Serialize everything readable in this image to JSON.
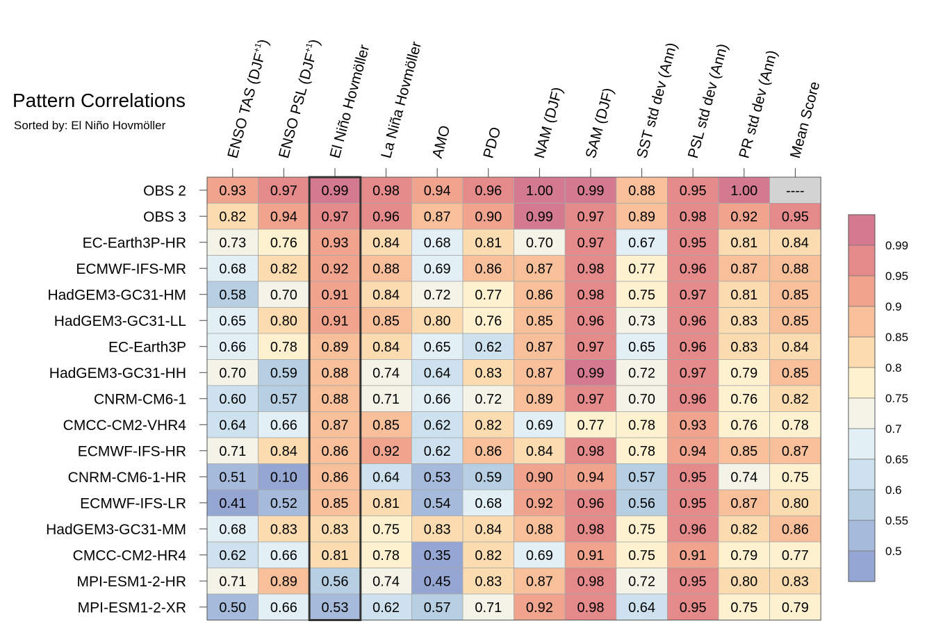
{
  "chart_data": {
    "type": "heatmap",
    "title": "Pattern Correlations",
    "subtitle": "Sorted by: El Niño Hovmöller",
    "columns": [
      {
        "main": "ENSO TAS (DJF",
        "sup": "+1",
        "tail": ")"
      },
      {
        "main": "ENSO PSL (DJF",
        "sup": "+1",
        "tail": ")"
      },
      {
        "main": "El Niño Hovmöller",
        "sup": "",
        "tail": ""
      },
      {
        "main": "La Niña Hovmöller",
        "sup": "",
        "tail": ""
      },
      {
        "main": "AMO",
        "sup": "",
        "tail": ""
      },
      {
        "main": "PDO",
        "sup": "",
        "tail": ""
      },
      {
        "main": "NAM (DJF)",
        "sup": "",
        "tail": ""
      },
      {
        "main": "SAM (DJF)",
        "sup": "",
        "tail": ""
      },
      {
        "main": "SST std dev (Ann)",
        "sup": "",
        "tail": ""
      },
      {
        "main": "PSL std dev (Ann)",
        "sup": "",
        "tail": ""
      },
      {
        "main": "PR std dev (Ann)",
        "sup": "",
        "tail": ""
      },
      {
        "main": "Mean Score",
        "sup": "",
        "tail": ""
      }
    ],
    "rows": [
      "OBS 2",
      "OBS 3",
      "EC-Earth3P-HR",
      "ECMWF-IFS-MR",
      "HadGEM3-GC31-HM",
      "HadGEM3-GC31-LL",
      "EC-Earth3P",
      "HadGEM3-GC31-HH",
      "CNRM-CM6-1",
      "CMCC-CM2-VHR4",
      "ECMWF-IFS-HR",
      "CNRM-CM6-1-HR",
      "ECMWF-IFS-LR",
      "HadGEM3-GC31-MM",
      "CMCC-CM2-HR4",
      "MPI-ESM1-2-HR",
      "MPI-ESM1-2-XR"
    ],
    "values": [
      [
        0.93,
        0.97,
        0.99,
        0.98,
        0.94,
        0.96,
        1.0,
        0.99,
        0.88,
        0.95,
        1.0,
        null
      ],
      [
        0.82,
        0.94,
        0.97,
        0.96,
        0.87,
        0.9,
        0.99,
        0.97,
        0.89,
        0.98,
        0.92,
        0.95
      ],
      [
        0.73,
        0.76,
        0.93,
        0.84,
        0.68,
        0.81,
        0.7,
        0.97,
        0.67,
        0.95,
        0.81,
        0.84
      ],
      [
        0.68,
        0.82,
        0.92,
        0.88,
        0.69,
        0.86,
        0.87,
        0.98,
        0.77,
        0.96,
        0.87,
        0.88
      ],
      [
        0.58,
        0.7,
        0.91,
        0.84,
        0.72,
        0.77,
        0.86,
        0.98,
        0.75,
        0.97,
        0.81,
        0.85
      ],
      [
        0.65,
        0.8,
        0.91,
        0.85,
        0.8,
        0.76,
        0.85,
        0.96,
        0.73,
        0.96,
        0.83,
        0.85
      ],
      [
        0.66,
        0.78,
        0.89,
        0.84,
        0.65,
        0.62,
        0.87,
        0.97,
        0.65,
        0.96,
        0.83,
        0.84
      ],
      [
        0.7,
        0.59,
        0.88,
        0.74,
        0.64,
        0.83,
        0.87,
        0.99,
        0.72,
        0.97,
        0.79,
        0.85
      ],
      [
        0.6,
        0.57,
        0.88,
        0.71,
        0.66,
        0.72,
        0.89,
        0.97,
        0.7,
        0.96,
        0.76,
        0.82
      ],
      [
        0.64,
        0.66,
        0.87,
        0.85,
        0.62,
        0.82,
        0.69,
        0.77,
        0.78,
        0.93,
        0.76,
        0.78
      ],
      [
        0.71,
        0.84,
        0.86,
        0.92,
        0.62,
        0.86,
        0.84,
        0.98,
        0.78,
        0.94,
        0.85,
        0.87
      ],
      [
        0.51,
        0.1,
        0.86,
        0.64,
        0.53,
        0.59,
        0.9,
        0.94,
        0.57,
        0.95,
        0.74,
        0.75
      ],
      [
        0.41,
        0.52,
        0.85,
        0.81,
        0.54,
        0.68,
        0.92,
        0.96,
        0.56,
        0.95,
        0.87,
        0.8
      ],
      [
        0.68,
        0.83,
        0.83,
        0.75,
        0.83,
        0.84,
        0.88,
        0.98,
        0.75,
        0.96,
        0.82,
        0.86
      ],
      [
        0.62,
        0.66,
        0.81,
        0.78,
        0.35,
        0.82,
        0.69,
        0.91,
        0.75,
        0.91,
        0.79,
        0.77
      ],
      [
        0.71,
        0.89,
        0.56,
        0.74,
        0.45,
        0.83,
        0.87,
        0.98,
        0.72,
        0.95,
        0.8,
        0.83
      ],
      [
        0.5,
        0.66,
        0.53,
        0.62,
        0.57,
        0.71,
        0.92,
        0.98,
        0.64,
        0.95,
        0.75,
        0.79
      ]
    ],
    "missing_label": "----",
    "sorted_column_index": 2,
    "colorbar": {
      "ticks": [
        "0.99",
        "0.95",
        "0.9",
        "0.85",
        "0.8",
        "0.75",
        "0.7",
        "0.65",
        "0.6",
        "0.55",
        "0.5"
      ],
      "bins": [
        {
          "min": 0.99,
          "max": 1.01,
          "color": "#d47a90"
        },
        {
          "min": 0.95,
          "max": 0.99,
          "color": "#e48a8b"
        },
        {
          "min": 0.9,
          "max": 0.95,
          "color": "#f0a38d"
        },
        {
          "min": 0.85,
          "max": 0.9,
          "color": "#f7bf9a"
        },
        {
          "min": 0.8,
          "max": 0.85,
          "color": "#fbdcb1"
        },
        {
          "min": 0.75,
          "max": 0.8,
          "color": "#fdf1cf"
        },
        {
          "min": 0.7,
          "max": 0.75,
          "color": "#f3f3e7"
        },
        {
          "min": 0.65,
          "max": 0.7,
          "color": "#e2f0f6"
        },
        {
          "min": 0.6,
          "max": 0.65,
          "color": "#cde2ee"
        },
        {
          "min": 0.55,
          "max": 0.6,
          "color": "#b6cfe3"
        },
        {
          "min": 0.5,
          "max": 0.55,
          "color": "#a6bbdb"
        },
        {
          "min": -1.0,
          "max": 0.5,
          "color": "#96a6d3"
        }
      ],
      "missing_color": "#d3d3d3"
    }
  }
}
